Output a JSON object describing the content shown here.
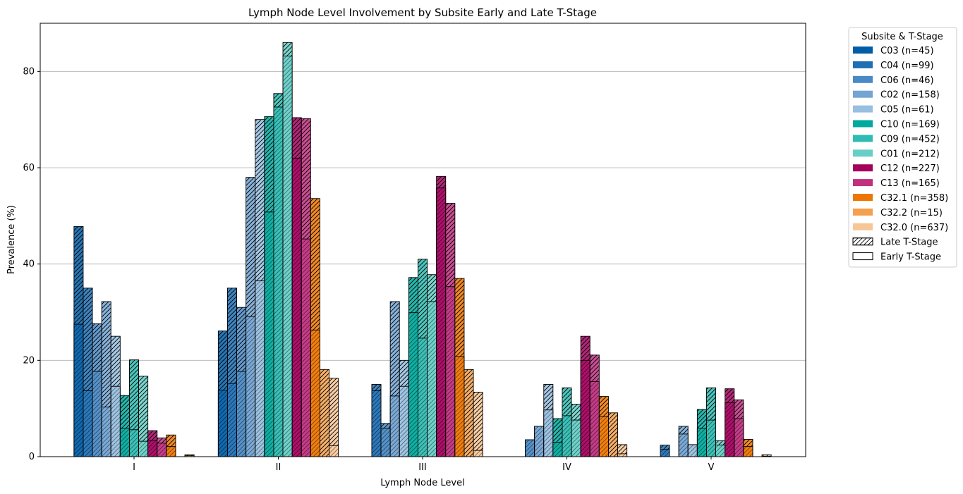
{
  "chart_data": {
    "type": "bar",
    "title": "Lymph Node Level Involvement by Subsite Early and Late T-Stage",
    "xlabel": "Lymph Node Level",
    "ylabel": "Prevalence (%)",
    "ylim": [
      0,
      90
    ],
    "yticks": [
      0,
      20,
      40,
      60,
      80
    ],
    "grid": "y",
    "categories": [
      "I",
      "II",
      "III",
      "IV",
      "V"
    ],
    "legend": {
      "title": "Subsite & T-Stage",
      "placement": "outside right",
      "late_label": "Late T-Stage",
      "early_label": "Early T-Stage"
    },
    "stacking": "Early T-Stage value is the lower segment; Late T-Stage (hatched) segment extends from the early value to the late value; series with late < early show the early bar drawn over the late bar",
    "series": [
      {
        "name": "C03 (n=45)",
        "color": "#005ea8",
        "early": [
          27.5,
          13.8,
          0,
          0,
          0
        ],
        "late": [
          47.8,
          26.1,
          0,
          0,
          0
        ]
      },
      {
        "name": "C04 (n=99)",
        "color": "#1f6fb4",
        "early": [
          13.7,
          15.2,
          13.7,
          0,
          1.5
        ],
        "late": [
          35.0,
          35.0,
          15.0,
          0,
          2.4
        ]
      },
      {
        "name": "C06 (n=46)",
        "color": "#4a8ac4",
        "early": [
          17.7,
          17.7,
          5.9,
          3.5,
          0
        ],
        "late": [
          27.6,
          31.0,
          6.9,
          3.5,
          0
        ]
      },
      {
        "name": "C02 (n=158)",
        "color": "#73a4d3",
        "early": [
          10.3,
          29.1,
          12.6,
          6.3,
          4.7
        ],
        "late": [
          32.2,
          58.0,
          32.2,
          6.3,
          6.3
        ]
      },
      {
        "name": "C05 (n=61)",
        "color": "#99bfe0",
        "early": [
          14.6,
          36.5,
          14.6,
          9.7,
          2.5
        ],
        "late": [
          25.0,
          70.0,
          20.0,
          15.0,
          2.5
        ]
      },
      {
        "name": "C10 (n=169)",
        "color": "#00a99d",
        "early": [
          5.9,
          50.8,
          29.9,
          3.0,
          5.9
        ],
        "late": [
          12.7,
          70.6,
          37.2,
          7.9,
          9.8
        ]
      },
      {
        "name": "C09 (n=452)",
        "color": "#2fbcb2",
        "early": [
          5.6,
          72.6,
          24.6,
          8.5,
          7.6
        ],
        "late": [
          20.1,
          75.4,
          41.0,
          14.3,
          14.3
        ]
      },
      {
        "name": "C01 (n=212)",
        "color": "#66cfc6",
        "early": [
          3.2,
          83.2,
          32.2,
          7.6,
          2.4
        ],
        "late": [
          16.7,
          86.0,
          37.8,
          10.9,
          3.3
        ]
      },
      {
        "name": "C12 (n=227)",
        "color": "#a6005f",
        "early": [
          3.4,
          62.0,
          55.8,
          20.0,
          11.2
        ],
        "late": [
          5.4,
          70.4,
          58.2,
          25.0,
          14.1
        ]
      },
      {
        "name": "C13 (n=165)",
        "color": "#c0307f",
        "early": [
          2.8,
          45.2,
          35.3,
          15.6,
          7.9
        ],
        "late": [
          3.9,
          70.2,
          52.6,
          21.1,
          11.8
        ]
      },
      {
        "name": "C32.1 (n=358)",
        "color": "#ee7600",
        "early": [
          2.1,
          26.3,
          20.8,
          8.3,
          2.1
        ],
        "late": [
          4.5,
          53.6,
          37.0,
          12.5,
          3.6
        ]
      },
      {
        "name": "C32.2 (n=15)",
        "color": "#f4a04e",
        "early": [
          0,
          0,
          0,
          0,
          0
        ],
        "late": [
          0,
          18.1,
          18.1,
          9.1,
          0
        ]
      },
      {
        "name": "C32.0 (n=637)",
        "color": "#f7c697",
        "early": [
          0.2,
          2.3,
          1.3,
          0.6,
          0.1
        ],
        "late": [
          0.4,
          16.3,
          13.4,
          2.5,
          0.4
        ]
      }
    ]
  }
}
